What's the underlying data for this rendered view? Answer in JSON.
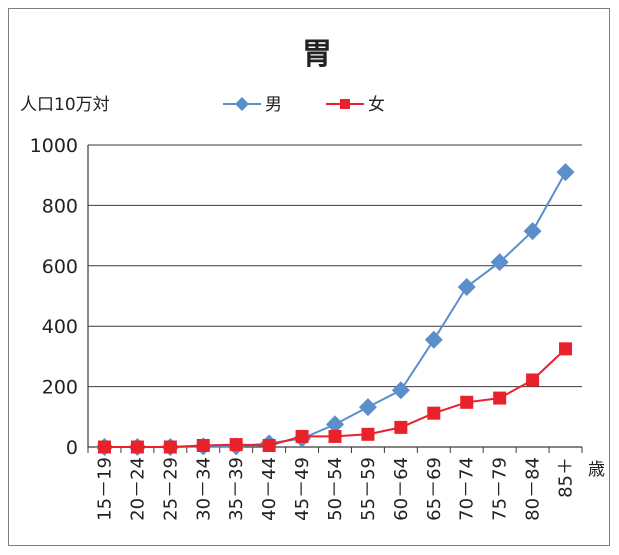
{
  "chart_data": {
    "type": "line",
    "title": "胃",
    "ylabel": "人口10万対",
    "xlabel": "歳",
    "ylim": [
      0,
      1000
    ],
    "yticks": [
      0,
      200,
      400,
      600,
      800,
      1000
    ],
    "grid": true,
    "legend_position": "top",
    "categories": [
      "15－19",
      "20－24",
      "25－29",
      "30－34",
      "35－39",
      "40－44",
      "45－49",
      "50－54",
      "55－59",
      "60－64",
      "65－69",
      "70－74",
      "75－79",
      "80－84",
      "85＋"
    ],
    "series": [
      {
        "name": "男",
        "color": "#5B8FCC",
        "marker": "diamond",
        "values": [
          0,
          0,
          0,
          2,
          2,
          12,
          28,
          75,
          132,
          188,
          355,
          530,
          612,
          715,
          910
        ]
      },
      {
        "name": "女",
        "color": "#E8212A",
        "marker": "square",
        "values": [
          0,
          0,
          0,
          5,
          8,
          5,
          35,
          35,
          42,
          65,
          112,
          148,
          162,
          222,
          325
        ]
      }
    ]
  }
}
